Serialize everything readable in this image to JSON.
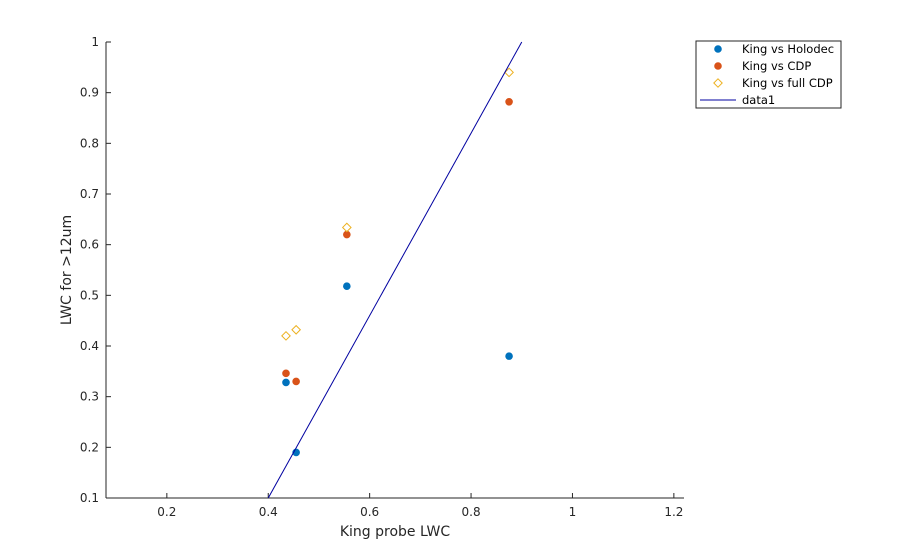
{
  "chart_data": {
    "type": "scatter",
    "xlabel": "King probe LWC",
    "ylabel": "LWC for >12um",
    "xlim": [
      0.08,
      1.22
    ],
    "ylim": [
      0.1,
      1.0
    ],
    "x_ticks": [
      0.2,
      0.4,
      0.6,
      0.8,
      1.0,
      1.2
    ],
    "x_tick_labels": [
      "0.2",
      "0.4",
      "0.6",
      "0.8",
      "1",
      "1.2"
    ],
    "y_ticks": [
      0.1,
      0.2,
      0.3,
      0.4,
      0.5,
      0.6,
      0.7,
      0.8,
      0.9,
      1.0
    ],
    "y_tick_labels": [
      "0.1",
      "0.2",
      "0.3",
      "0.4",
      "0.5",
      "0.6",
      "0.7",
      "0.8",
      "0.9",
      "1"
    ],
    "grid": false,
    "legend_position": "top-right",
    "series": [
      {
        "name": "King vs Holodec",
        "marker": "filled-circle",
        "color": "#0072BD",
        "x": [
          0.435,
          0.455,
          0.555,
          0.875
        ],
        "y": [
          0.328,
          0.19,
          0.518,
          0.38
        ]
      },
      {
        "name": "King vs CDP",
        "marker": "filled-circle",
        "color": "#D95319",
        "x": [
          0.435,
          0.455,
          0.555,
          0.875
        ],
        "y": [
          0.346,
          0.33,
          0.62,
          0.882
        ]
      },
      {
        "name": "King vs full CDP",
        "marker": "open-diamond",
        "color": "#EDB120",
        "x": [
          0.435,
          0.455,
          0.555,
          0.875
        ],
        "y": [
          0.42,
          0.432,
          0.634,
          0.94
        ]
      },
      {
        "name": "data1",
        "marker": "line",
        "color": "#0000A0",
        "x": [
          0.4,
          0.9
        ],
        "y": [
          0.1,
          1.0
        ]
      }
    ]
  }
}
